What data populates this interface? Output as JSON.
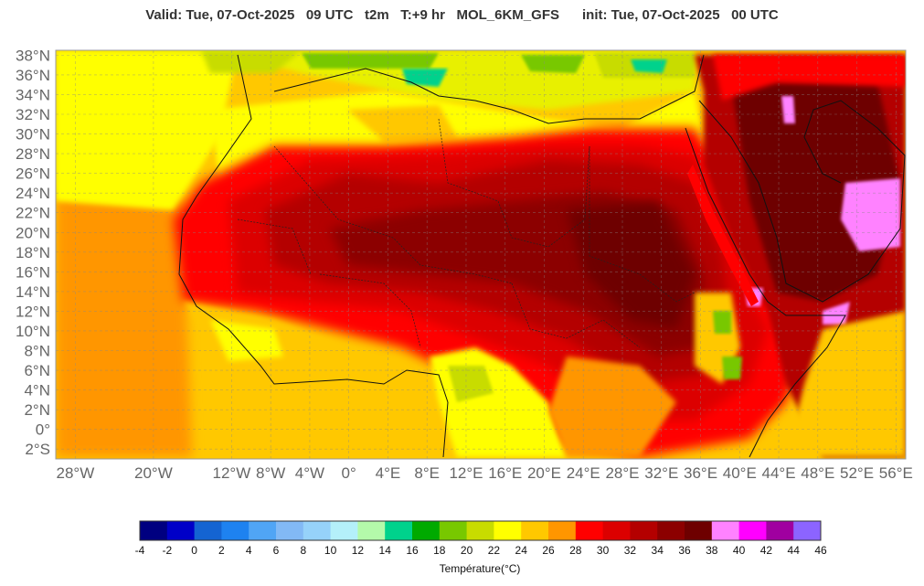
{
  "header": {
    "title": "Valid: Tue, 07-Oct-2025   09 UTC   t2m   T:+9 hr   MOL_6KM_GFS      init: Tue, 07-Oct-2025   00 UTC"
  },
  "map": {
    "variable": "t2m",
    "lat_labels": [
      "38°N",
      "36°N",
      "34°N",
      "32°N",
      "30°N",
      "28°N",
      "26°N",
      "24°N",
      "22°N",
      "20°N",
      "18°N",
      "16°N",
      "14°N",
      "12°N",
      "10°N",
      "8°N",
      "6°N",
      "4°N",
      "2°N",
      "0°",
      "2°S"
    ],
    "lon_labels": [
      "28°W",
      "20°W",
      "12°W",
      "8°W",
      "4°W",
      "0°",
      "4°E",
      "8°E",
      "12°E",
      "16°E",
      "20°E",
      "24°E",
      "28°E",
      "32°E",
      "36°E",
      "40°E",
      "44°E",
      "48°E",
      "52°E",
      "56°E"
    ],
    "lon_values": [
      -28,
      -20,
      -12,
      -8,
      -4,
      0,
      4,
      8,
      12,
      16,
      20,
      24,
      28,
      32,
      36,
      40,
      44,
      48,
      52,
      56
    ],
    "lat_values": [
      38,
      36,
      34,
      32,
      30,
      28,
      26,
      24,
      22,
      20,
      18,
      16,
      14,
      12,
      10,
      8,
      6,
      4,
      2,
      0,
      -2
    ],
    "lat_range": [
      -3,
      38.5
    ],
    "lon_range": [
      -30,
      57
    ],
    "grid": true
  },
  "colorbar": {
    "title": "Température(°C)",
    "tick_labels": [
      "-4",
      "-2",
      "0",
      "2",
      "4",
      "6",
      "8",
      "10",
      "12",
      "14",
      "16",
      "18",
      "20",
      "22",
      "24",
      "26",
      "28",
      "30",
      "32",
      "34",
      "36",
      "38",
      "40",
      "42",
      "44",
      "46"
    ],
    "colors": [
      "#000080",
      "#0000c8",
      "#1464d2",
      "#1e82f0",
      "#50a5f5",
      "#82b9f5",
      "#96d2fa",
      "#b4f0fa",
      "#b4faaa",
      "#00d28c",
      "#00aa00",
      "#78c800",
      "#c8dc00",
      "#ffff00",
      "#ffc800",
      "#ff9600",
      "#ff0000",
      "#dc0000",
      "#b40000",
      "#8c0000",
      "#6e0000",
      "#ff82ff",
      "#ff00ff",
      "#a000a0",
      "#8c64ff"
    ]
  }
}
